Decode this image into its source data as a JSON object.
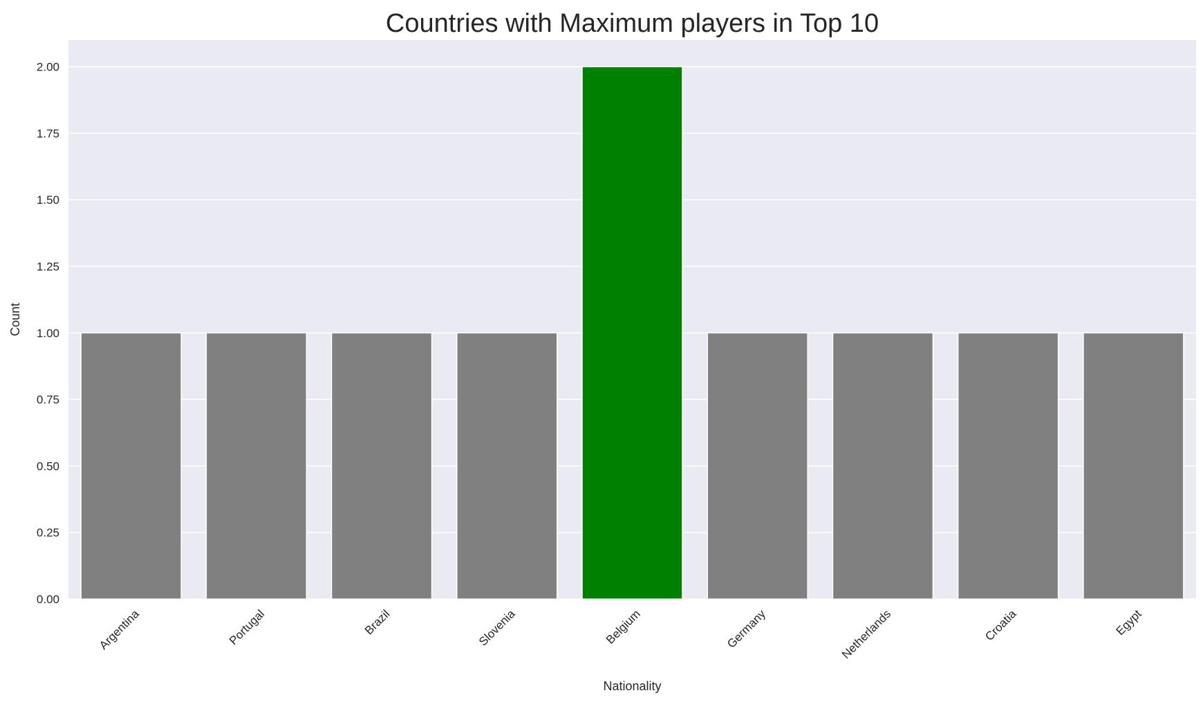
{
  "chart_data": {
    "type": "bar",
    "title": "Countries with Maximum players in Top 10",
    "xlabel": "Nationality",
    "ylabel": "Count",
    "categories": [
      "Argentina",
      "Portugal",
      "Brazil",
      "Slovenia",
      "Belgium",
      "Germany",
      "Netherlands",
      "Croatia",
      "Egypt"
    ],
    "values": [
      1,
      1,
      1,
      1,
      2,
      1,
      1,
      1,
      1
    ],
    "bar_colors": [
      "#808080",
      "#808080",
      "#808080",
      "#808080",
      "#008000",
      "#808080",
      "#808080",
      "#808080",
      "#808080"
    ],
    "ylim": [
      0,
      2.1
    ],
    "yticks": [
      "0.00",
      "0.25",
      "0.50",
      "0.75",
      "1.00",
      "1.25",
      "1.50",
      "1.75",
      "2.00"
    ],
    "grid": true,
    "background": "#eaeaf2"
  }
}
